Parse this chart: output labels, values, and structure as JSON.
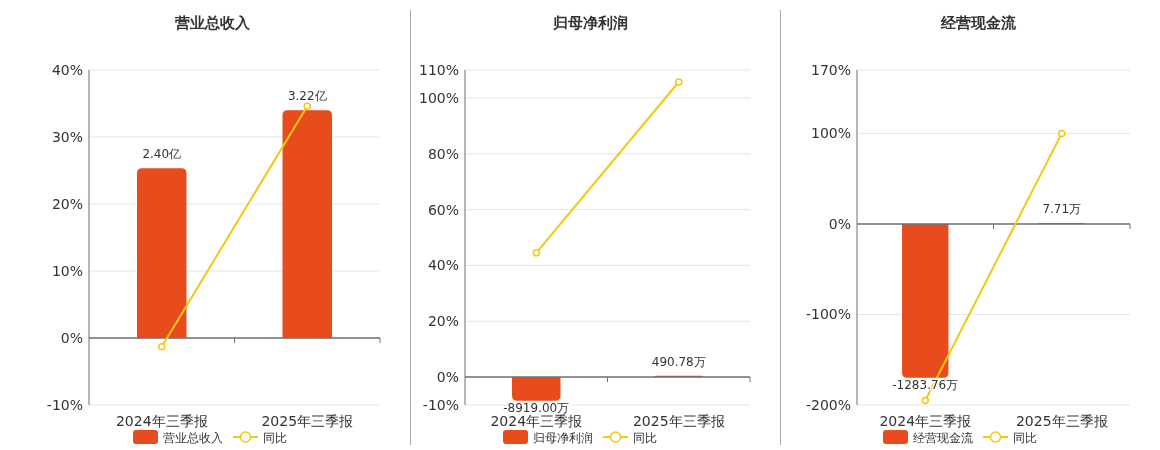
{
  "chart_data": [
    {
      "type": "bar",
      "title": "营业总收入",
      "categories": [
        "2024年三季报",
        "2025年三季报"
      ],
      "series": [
        {
          "name": "营业总收入",
          "axis": "y2",
          "color": "#e84b1c",
          "values": [
            2.4,
            3.22
          ],
          "value_labels": [
            "2.40亿",
            "3.22亿"
          ]
        },
        {
          "name": "同比",
          "type": "line",
          "color": "#f2c811",
          "marker": "circle",
          "values": [
            -1.3,
            34.6
          ]
        }
      ],
      "ylim": [
        -10,
        40
      ],
      "yticks": [
        {
          "value": -10,
          "label": "-10%"
        },
        {
          "value": 0,
          "label": "0%"
        },
        {
          "value": 10,
          "label": "10%"
        },
        {
          "value": 20,
          "label": "20%"
        },
        {
          "value": 30,
          "label": "30%"
        },
        {
          "value": 40,
          "label": "40%"
        }
      ],
      "grid": "y",
      "legend": "bottom"
    },
    {
      "type": "bar",
      "title": "归母净利润",
      "categories": [
        "2024年三季报",
        "2025年三季报"
      ],
      "series": [
        {
          "name": "归母净利润",
          "axis": "y2",
          "color": "#e84b1c",
          "values": [
            -8919.0,
            490.78
          ],
          "value_labels": [
            "-8919.00万",
            "490.78万"
          ]
        },
        {
          "name": "同比",
          "type": "line",
          "color": "#f2c811",
          "marker": "circle",
          "values": [
            44.5,
            105.7
          ]
        }
      ],
      "ylim": [
        -10,
        110
      ],
      "yticks": [
        {
          "value": -10,
          "label": "-10%"
        },
        {
          "value": 0,
          "label": "0%"
        },
        {
          "value": 20,
          "label": "20%"
        },
        {
          "value": 40,
          "label": "40%"
        },
        {
          "value": 60,
          "label": "60%"
        },
        {
          "value": 80,
          "label": "80%"
        },
        {
          "value": 100,
          "label": "100%"
        },
        {
          "value": 110,
          "label": "110%"
        }
      ],
      "grid": "y",
      "legend": "bottom"
    },
    {
      "type": "bar",
      "title": "经营现金流",
      "categories": [
        "2024年三季报",
        "2025年三季报"
      ],
      "series": [
        {
          "name": "经营现金流",
          "axis": "y2",
          "color": "#e84b1c",
          "values": [
            -1283.76,
            7.71
          ],
          "value_labels": [
            "-1283.76万",
            "7.71万"
          ]
        },
        {
          "name": "同比",
          "type": "line",
          "color": "#f2c811",
          "marker": "circle",
          "values": [
            -195,
            100
          ]
        }
      ],
      "ylim": [
        -200,
        170
      ],
      "yticks": [
        {
          "value": -200,
          "label": "-200%"
        },
        {
          "value": -100,
          "label": "-100%"
        },
        {
          "value": 0,
          "label": "0%"
        },
        {
          "value": 100,
          "label": "100%"
        },
        {
          "value": 170,
          "label": "170%"
        }
      ],
      "grid": "y",
      "legend": "bottom"
    }
  ]
}
